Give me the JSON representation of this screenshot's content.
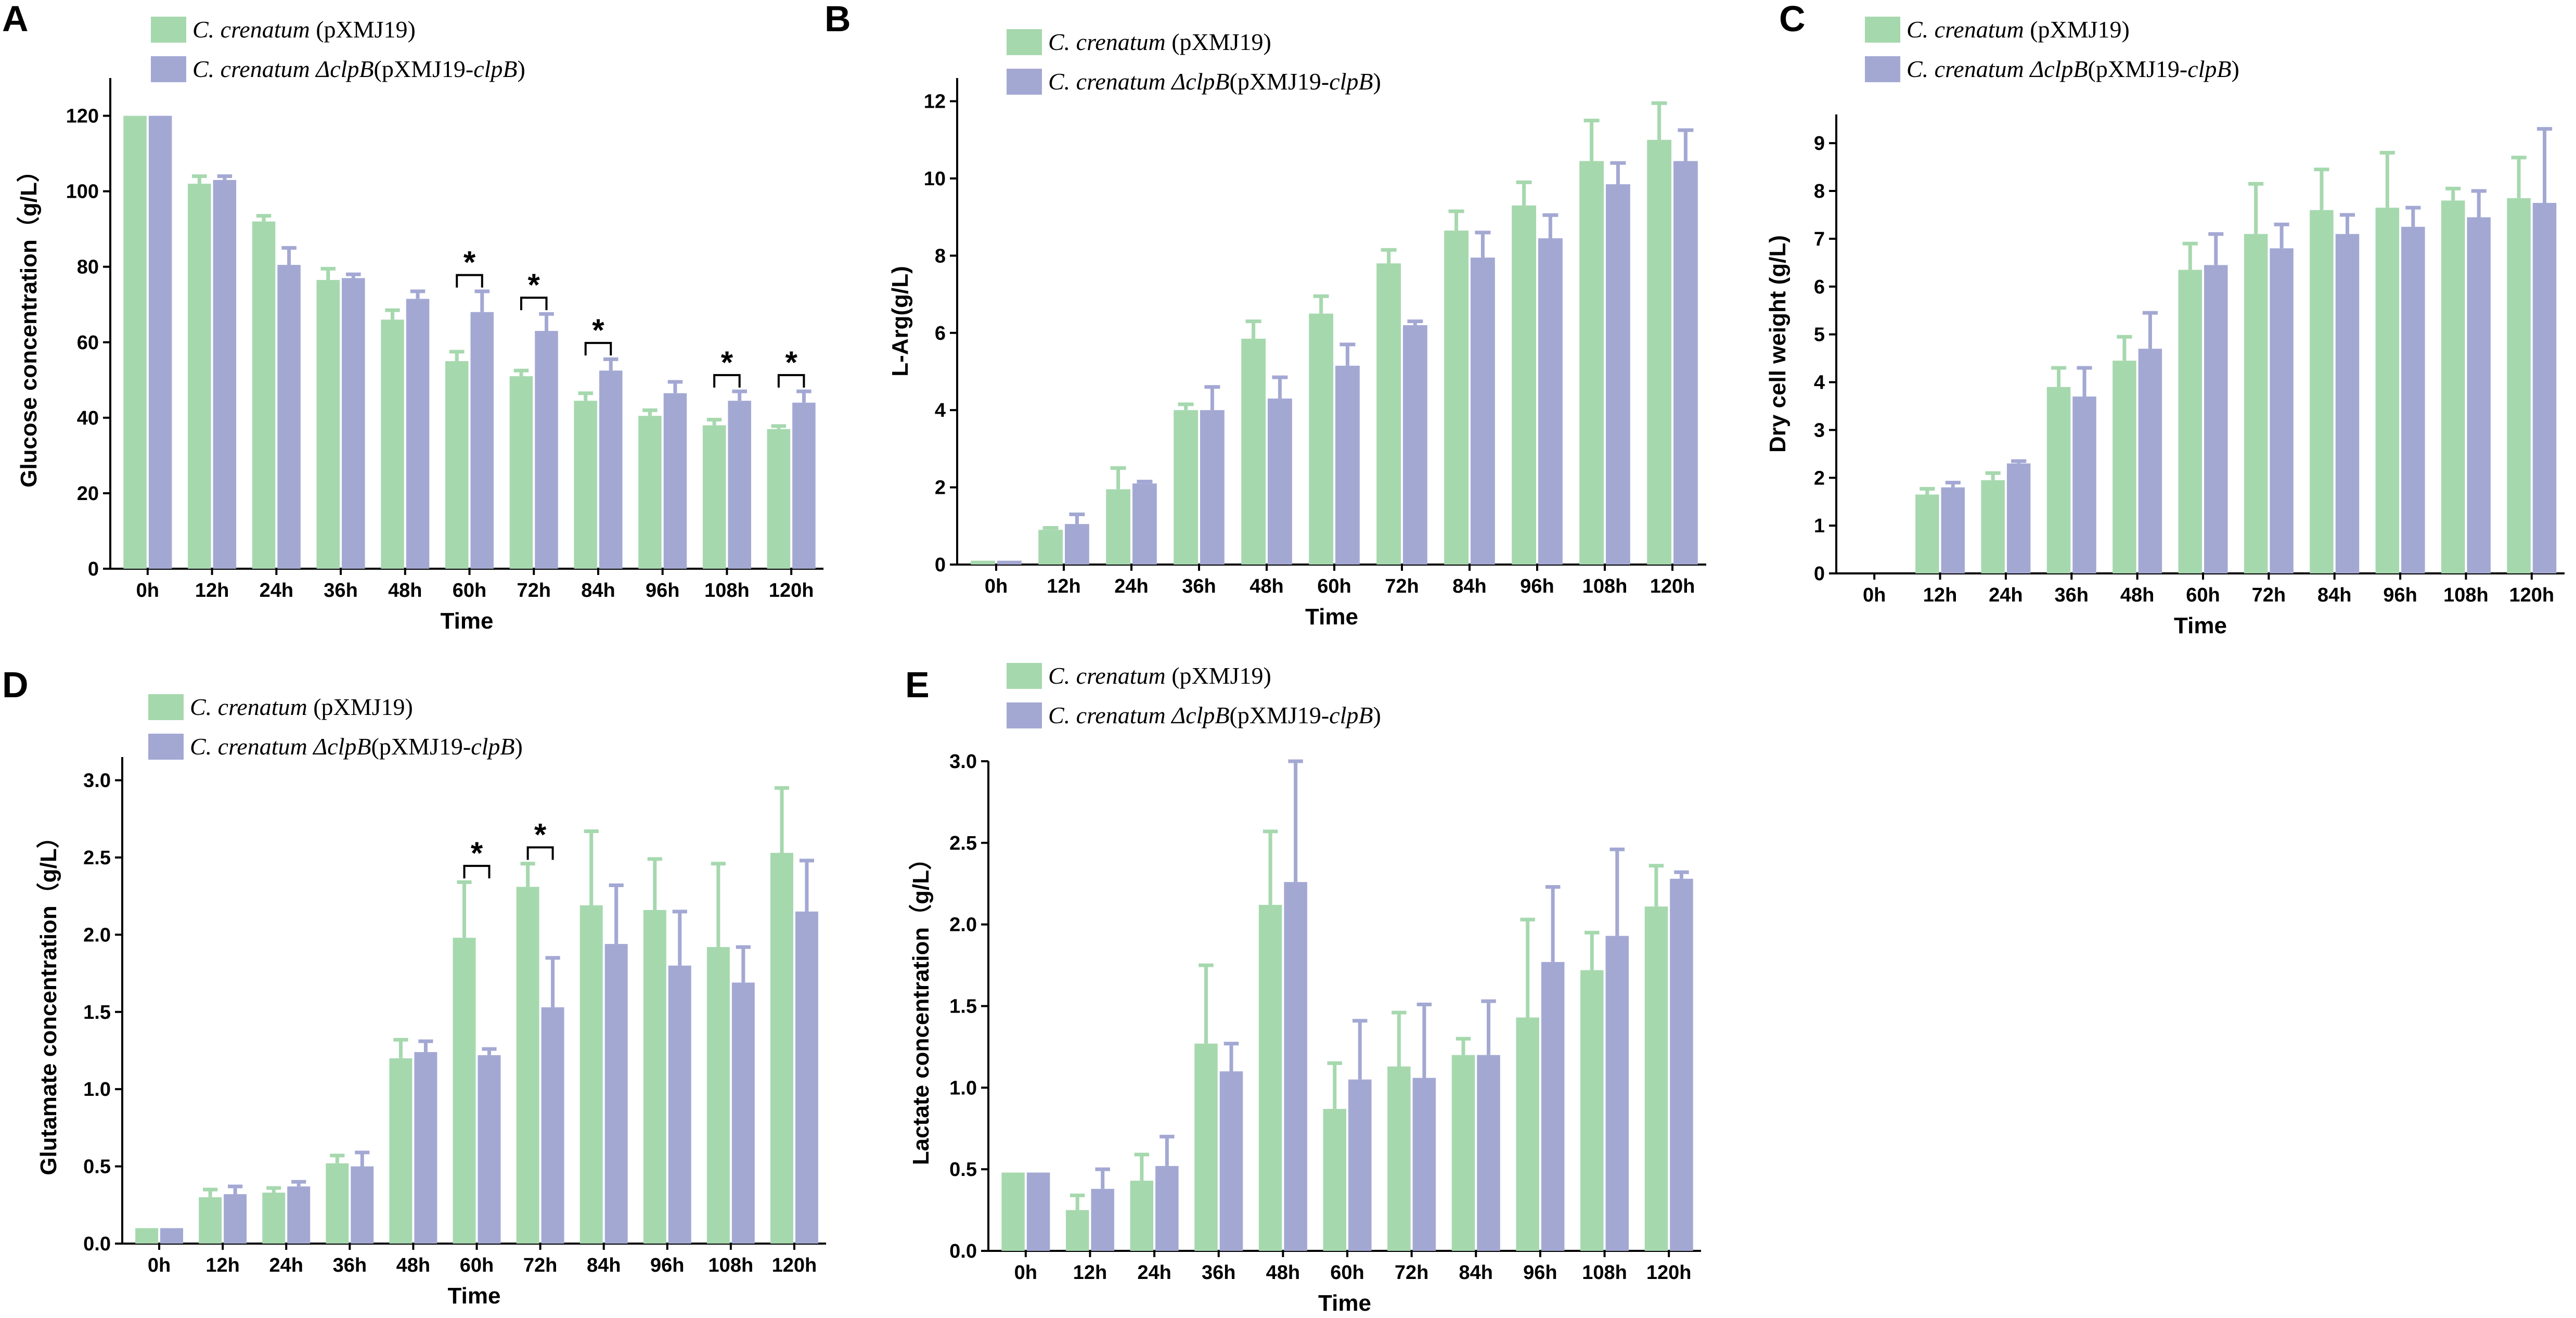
{
  "colors": {
    "series1": "#a6d8ae",
    "series2": "#a3a8d3",
    "axis": "#000000"
  },
  "chart_data": [
    {
      "id": "A",
      "type": "bar",
      "panel_label": "A",
      "xlabel": "Time",
      "ylabel": "Glucose concentration（g/L）",
      "ylim": [
        0,
        130
      ],
      "yticks": [
        0,
        20,
        40,
        60,
        80,
        100,
        120
      ],
      "categories": [
        "0h",
        "12h",
        "24h",
        "36h",
        "48h",
        "60h",
        "72h",
        "84h",
        "96h",
        "108h",
        "120h"
      ],
      "legend": [
        {
          "italic": "C. crenatum",
          "mid": "",
          "normal": " (pXMJ19)",
          "tail": ""
        },
        {
          "italic": "C. crenatum ΔclpB",
          "mid": "",
          "normal": "(pXMJ19-",
          "tail": "clpB",
          "end": ")"
        }
      ],
      "legend_position": "top-left",
      "series": [
        {
          "name": "C. crenatum (pXMJ19)",
          "values": [
            120,
            102,
            92,
            76.5,
            66,
            55,
            51,
            44.5,
            40.5,
            38,
            37
          ],
          "errors": [
            0,
            2,
            1.5,
            3,
            2.5,
            2.5,
            1.5,
            2,
            1.5,
            1.5,
            0.8
          ]
        },
        {
          "name": "C. crenatum ΔclpB(pXMJ19-clpB)",
          "values": [
            120,
            103,
            80.5,
            77,
            71.5,
            68,
            63,
            52.5,
            46.5,
            44.5,
            44
          ],
          "errors": [
            0,
            1,
            4.5,
            1,
            2,
            5.5,
            4.5,
            3,
            3,
            2.5,
            3
          ]
        }
      ],
      "significance": [
        {
          "category": "60h",
          "label": "*"
        },
        {
          "category": "72h",
          "label": "*"
        },
        {
          "category": "84h",
          "label": "*"
        },
        {
          "category": "108h",
          "label": "*"
        },
        {
          "category": "120h",
          "label": "*"
        }
      ]
    },
    {
      "id": "B",
      "type": "bar",
      "panel_label": "B",
      "xlabel": "Time",
      "ylabel": "L-Arg(g/L)",
      "ylim": [
        0,
        12.6
      ],
      "yticks": [
        0,
        2,
        4,
        6,
        8,
        10,
        12
      ],
      "categories": [
        "0h",
        "12h",
        "24h",
        "36h",
        "48h",
        "60h",
        "72h",
        "84h",
        "96h",
        "108h",
        "120h"
      ],
      "legend": [
        {
          "italic": "C. crenatum",
          "normal": " (pXMJ19)",
          "tail": "",
          "end": ""
        },
        {
          "italic": "C. crenatum ΔclpB",
          "normal": "(pXMJ19-",
          "tail": "clpB",
          "end": ")"
        }
      ],
      "legend_position": "top-left",
      "series": [
        {
          "name": "C. crenatum (pXMJ19)",
          "values": [
            0.1,
            0.9,
            1.95,
            4.0,
            5.85,
            6.5,
            7.8,
            8.65,
            9.3,
            10.45,
            11.0
          ],
          "errors": [
            0,
            0.05,
            0.55,
            0.15,
            0.45,
            0.45,
            0.35,
            0.5,
            0.6,
            1.05,
            0.95
          ]
        },
        {
          "name": "C. crenatum ΔclpB(pXMJ19-clpB)",
          "values": [
            0.1,
            1.05,
            2.1,
            4.0,
            4.3,
            5.15,
            6.2,
            7.95,
            8.45,
            9.85,
            10.45
          ],
          "errors": [
            0,
            0.25,
            0.05,
            0.6,
            0.55,
            0.55,
            0.1,
            0.65,
            0.6,
            0.55,
            0.8
          ]
        }
      ],
      "significance": []
    },
    {
      "id": "C",
      "type": "bar",
      "panel_label": "C",
      "xlabel": "Time",
      "ylabel": "Dry cell weight (g/L)",
      "ylim": [
        0,
        9.6
      ],
      "yticks": [
        0,
        1,
        2,
        3,
        4,
        5,
        6,
        7,
        8,
        9
      ],
      "categories": [
        "0h",
        "12h",
        "24h",
        "36h",
        "48h",
        "60h",
        "72h",
        "84h",
        "96h",
        "108h",
        "120h"
      ],
      "legend": [
        {
          "italic": "C. crenatum",
          "normal": " (pXMJ19)",
          "tail": "",
          "end": ""
        },
        {
          "italic": "C. crenatum ΔclpB",
          "normal": "(pXMJ19-",
          "tail": "clpB",
          "end": ")"
        }
      ],
      "legend_position": "top-left",
      "series": [
        {
          "name": "C. crenatum (pXMJ19)",
          "values": [
            0,
            1.65,
            1.95,
            3.9,
            4.45,
            6.35,
            7.1,
            7.6,
            7.65,
            7.8,
            7.85
          ],
          "errors": [
            0,
            0.12,
            0.15,
            0.4,
            0.5,
            0.55,
            1.05,
            0.85,
            1.15,
            0.25,
            0.85
          ]
        },
        {
          "name": "C. crenatum ΔclpB(pXMJ19-clpB)",
          "values": [
            0,
            1.8,
            2.3,
            3.7,
            4.7,
            6.45,
            6.8,
            7.1,
            7.25,
            7.45,
            7.75
          ],
          "errors": [
            0,
            0.1,
            0.05,
            0.6,
            0.75,
            0.65,
            0.5,
            0.4,
            0.4,
            0.55,
            1.55
          ]
        }
      ],
      "significance": []
    },
    {
      "id": "D",
      "type": "bar",
      "panel_label": "D",
      "xlabel": "Time",
      "ylabel": "Glutamate concentration（g/L）",
      "ylim": [
        0,
        3.15
      ],
      "yticks": [
        "0.0",
        "0.5",
        "1.0",
        "1.5",
        "2.0",
        "2.5",
        "3.0"
      ],
      "categories": [
        "0h",
        "12h",
        "24h",
        "36h",
        "48h",
        "60h",
        "72h",
        "84h",
        "96h",
        "108h",
        "120h"
      ],
      "legend": [
        {
          "italic": "C. crenatum",
          "normal": " (pXMJ19)",
          "tail": "",
          "end": ""
        },
        {
          "italic": "C. crenatum ΔclpB",
          "normal": "(pXMJ19-",
          "tail": "clpB",
          "end": ")"
        }
      ],
      "legend_position": "top-left",
      "series": [
        {
          "name": "C. crenatum (pXMJ19)",
          "values": [
            0.1,
            0.3,
            0.33,
            0.52,
            1.2,
            1.98,
            2.31,
            2.19,
            2.16,
            1.92,
            2.53
          ],
          "errors": [
            0,
            0.05,
            0.03,
            0.05,
            0.12,
            0.36,
            0.15,
            0.48,
            0.33,
            0.54,
            0.42
          ]
        },
        {
          "name": "C. crenatum ΔclpB(pXMJ19-clpB)",
          "values": [
            0.1,
            0.32,
            0.37,
            0.5,
            1.24,
            1.22,
            1.53,
            1.94,
            1.8,
            1.69,
            2.15
          ],
          "errors": [
            0,
            0.05,
            0.03,
            0.09,
            0.07,
            0.04,
            0.32,
            0.38,
            0.35,
            0.23,
            0.33
          ]
        }
      ],
      "significance": [
        {
          "category": "60h",
          "label": "*"
        },
        {
          "category": "72h",
          "label": "*"
        }
      ]
    },
    {
      "id": "E",
      "type": "bar",
      "panel_label": "E",
      "xlabel": "Time",
      "ylabel": "Lactate concentration（g/L）",
      "ylim": [
        0,
        3.0
      ],
      "yticks": [
        "0.0",
        "0.5",
        "1.0",
        "1.5",
        "2.0",
        "2.5",
        "3.0"
      ],
      "categories": [
        "0h",
        "12h",
        "24h",
        "36h",
        "48h",
        "60h",
        "72h",
        "84h",
        "96h",
        "108h",
        "120h"
      ],
      "legend": [
        {
          "italic": "C. crenatum",
          "normal": " (pXMJ19)",
          "tail": "",
          "end": ""
        },
        {
          "italic": "C. crenatum ΔclpB",
          "normal": "(pXMJ19-",
          "tail": "clpB",
          "end": ")"
        }
      ],
      "legend_position": "top-left",
      "series": [
        {
          "name": "C. crenatum (pXMJ19)",
          "values": [
            0.48,
            0.25,
            0.43,
            1.27,
            2.12,
            0.87,
            1.13,
            1.2,
            1.43,
            1.72,
            2.11
          ],
          "errors": [
            0,
            0.09,
            0.16,
            0.48,
            0.45,
            0.28,
            0.33,
            0.1,
            0.6,
            0.23,
            0.25
          ]
        },
        {
          "name": "C. crenatum ΔclpB(pXMJ19-clpB)",
          "values": [
            0.48,
            0.38,
            0.52,
            1.1,
            2.26,
            1.05,
            1.06,
            1.2,
            1.77,
            1.93,
            2.28
          ],
          "errors": [
            0,
            0.12,
            0.18,
            0.17,
            0.74,
            0.36,
            0.45,
            0.33,
            0.46,
            0.53,
            0.04
          ]
        }
      ],
      "significance": []
    }
  ]
}
